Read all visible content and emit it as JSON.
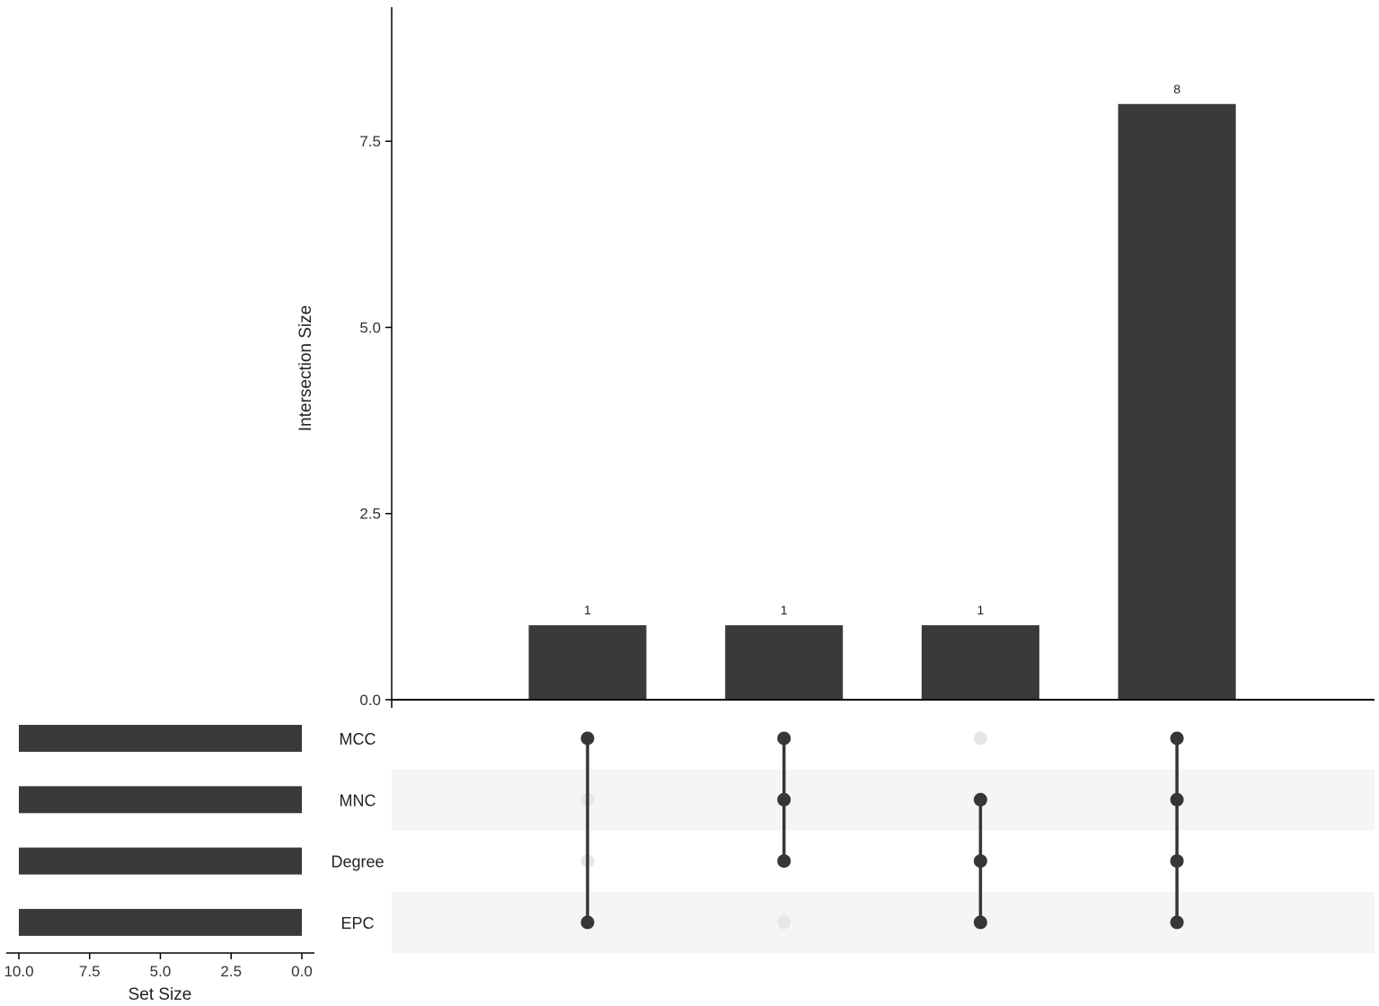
{
  "chart_data": {
    "type": "upset",
    "intersection_plot": {
      "type": "bar",
      "ylabel": "Intersection Size",
      "ylim": [
        0,
        9.3
      ],
      "y_ticks": [
        0.0,
        2.5,
        5.0,
        7.5
      ],
      "y_tick_labels": [
        "0.0",
        "2.5",
        "5.0",
        "7.5"
      ],
      "bars": [
        {
          "members": [
            "MCC",
            "EPC"
          ],
          "value": 1,
          "label": "1"
        },
        {
          "members": [
            "MCC",
            "MNC",
            "Degree"
          ],
          "value": 1,
          "label": "1"
        },
        {
          "members": [
            "MNC",
            "Degree",
            "EPC"
          ],
          "value": 1,
          "label": "1"
        },
        {
          "members": [
            "MCC",
            "MNC",
            "Degree",
            "EPC"
          ],
          "value": 8,
          "label": "8"
        }
      ]
    },
    "sets": [
      {
        "name": "MCC",
        "size": 10
      },
      {
        "name": "MNC",
        "size": 10
      },
      {
        "name": "Degree",
        "size": 10
      },
      {
        "name": "EPC",
        "size": 10
      }
    ],
    "set_size_plot": {
      "type": "bar",
      "xlabel": "Set Size",
      "xlim": [
        10.0,
        0.0
      ],
      "x_ticks": [
        10.0,
        7.5,
        5.0,
        2.5,
        0.0
      ],
      "x_tick_labels": [
        "10.0",
        "7.5",
        "5.0",
        "2.5",
        "0.0"
      ]
    },
    "grid": false,
    "colors": {
      "bar": "#3a3a3a",
      "dot_active": "#363636",
      "dot_inactive": "#e6e6e6",
      "stripe": "#f5f5f5",
      "axis": "#000000",
      "text": "#222222"
    }
  }
}
